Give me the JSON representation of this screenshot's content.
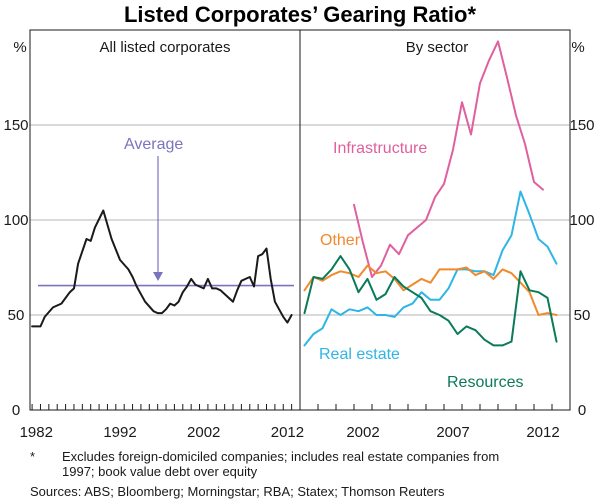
{
  "chart_data": {
    "type": "line",
    "title": "Listed Corporates’ Gearing Ratio*",
    "unit_label": "%",
    "ylim": [
      0,
      200
    ],
    "yticks": [
      "0",
      "50",
      "100",
      "150"
    ],
    "panels": [
      {
        "title": "All listed corporates",
        "xlim": [
          1980.75,
          2013
        ],
        "xticks": [
          "1982",
          "1992",
          "2002",
          "2012"
        ],
        "series": [
          {
            "name": "All listed corporates",
            "color": "#1a1a1a",
            "x": [
              1981.0,
              1982.0,
              1982.5,
              1983.5,
              1984.5,
              1985.5,
              1986.0,
              1986.5,
              1987.5,
              1988.0,
              1988.5,
              1989.5,
              1990.5,
              1991.5,
              1992.5,
              1993.0,
              1993.5,
              1994.5,
              1995.5,
              1996.0,
              1996.5,
              1997.0,
              1997.5,
              1998.0,
              1998.5,
              1999.0,
              1999.5,
              2000.0,
              2000.5,
              2001.0,
              2001.5,
              2002.0,
              2002.5,
              2003.0,
              2003.5,
              2004.0,
              2004.5,
              2005.0,
              2005.5,
              2006.0,
              2006.5,
              2007.0,
              2007.5,
              2008.0,
              2008.5,
              2009.0,
              2009.5,
              2010.0,
              2010.5,
              2011.0,
              2011.5,
              2012.0
            ],
            "values": [
              44,
              44,
              49,
              54,
              56,
              62,
              64,
              77,
              90,
              89,
              96,
              105,
              90,
              79,
              74,
              70,
              65,
              57,
              52,
              51,
              51,
              53,
              56,
              55,
              57,
              62,
              65,
              69,
              66,
              65,
              64,
              69,
              64,
              64,
              63,
              61,
              59,
              57,
              63,
              68,
              69,
              70,
              65,
              81,
              82,
              85,
              69,
              57,
              53,
              49,
              46,
              50
            ]
          }
        ],
        "reference": {
          "label": "Average",
          "value": 65.5,
          "color": "#7a74c0"
        }
      },
      {
        "title": "By sector",
        "xlim": [
          1998.0,
          2013
        ],
        "xticks": [
          "2002",
          "2007",
          "2012"
        ],
        "series": [
          {
            "name": "Infrastructure",
            "color": "#e0609e",
            "x": [
              2001.0,
              2001.5,
              2002.0,
              2002.5,
              2003.0,
              2003.5,
              2004.0,
              2004.5,
              2005.0,
              2005.5,
              2006.0,
              2006.5,
              2007.0,
              2007.5,
              2008.0,
              2008.5,
              2009.0,
              2009.5,
              2010.0,
              2010.5,
              2011.0,
              2011.5
            ],
            "values": [
              108,
              88,
              70,
              76,
              87,
              82,
              92,
              96,
              100,
              112,
              119,
              137,
              162,
              145,
              172,
              184,
              194,
              175,
              155,
              140,
              120,
              116
            ]
          },
          {
            "name": "Real estate",
            "color": "#2fb5e6",
            "x": [
              1998.25,
              1998.75,
              1999.25,
              1999.75,
              2000.25,
              2000.75,
              2001.25,
              2001.75,
              2002.25,
              2002.75,
              2003.25,
              2003.75,
              2004.25,
              2004.75,
              2005.25,
              2005.75,
              2006.25,
              2006.75,
              2007.25,
              2007.75,
              2008.25,
              2008.75,
              2009.25,
              2009.75,
              2010.25,
              2010.75,
              2011.25,
              2011.75,
              2012.25
            ],
            "values": [
              34,
              40,
              43,
              53,
              50,
              53,
              52,
              54,
              50,
              50,
              49,
              54,
              56,
              62,
              58,
              58,
              64,
              74,
              74,
              73,
              73,
              71,
              84,
              92,
              115,
              103,
              90,
              86,
              77
            ]
          },
          {
            "name": "Other",
            "color": "#f08a2c",
            "x": [
              1998.25,
              1998.75,
              1999.25,
              1999.75,
              2000.25,
              2000.75,
              2001.25,
              2001.75,
              2002.25,
              2002.75,
              2003.25,
              2003.75,
              2004.25,
              2004.75,
              2005.25,
              2005.75,
              2006.25,
              2006.75,
              2007.25,
              2007.75,
              2008.25,
              2008.75,
              2009.25,
              2009.75,
              2010.25,
              2010.75,
              2011.25,
              2011.75,
              2012.25
            ],
            "values": [
              63,
              70,
              68,
              71,
              73,
              72,
              70,
              76,
              72,
              73,
              69,
              63,
              66,
              69,
              67,
              74,
              74,
              74,
              75,
              71,
              73,
              69,
              74,
              72,
              67,
              62,
              50,
              51,
              50
            ]
          },
          {
            "name": "Resources",
            "color": "#0b7a5a",
            "x": [
              1998.25,
              1998.75,
              1999.25,
              1999.75,
              2000.25,
              2000.75,
              2001.25,
              2001.75,
              2002.25,
              2002.75,
              2003.25,
              2003.75,
              2004.25,
              2004.75,
              2005.25,
              2005.75,
              2006.25,
              2006.75,
              2007.25,
              2007.75,
              2008.25,
              2008.75,
              2009.25,
              2009.75,
              2010.25,
              2010.75,
              2011.25,
              2011.75,
              2012.25
            ],
            "values": [
              51,
              70,
              69,
              74,
              81,
              74,
              62,
              69,
              58,
              61,
              70,
              65,
              62,
              59,
              52,
              50,
              47,
              40,
              44,
              42,
              37,
              34,
              34,
              36,
              73,
              63,
              62,
              59,
              36
            ]
          }
        ]
      }
    ]
  },
  "panel_labels": {
    "all": "All listed corporates",
    "sector": "By sector"
  },
  "annotation_labels": {
    "average": "Average",
    "infrastructure": "Infrastructure",
    "other": "Other",
    "real_estate": "Real estate",
    "resources": "Resources"
  },
  "footnote": {
    "marker": "*",
    "lines": [
      "Excludes foreign-domiciled companies; includes real estate companies from",
      "1997; book value debt over equity"
    ]
  },
  "sources": "Sources: ABS; Bloomberg; Morningstar; RBA; Statex; Thomson Reuters",
  "colors": {
    "grid": "#b4b4b4",
    "axis": "#1a1a1a",
    "average": "#7a74c0",
    "infrastructure": "#e0609e",
    "real_estate": "#2fb5e6",
    "other": "#f08a2c",
    "resources": "#0b7a5a"
  }
}
